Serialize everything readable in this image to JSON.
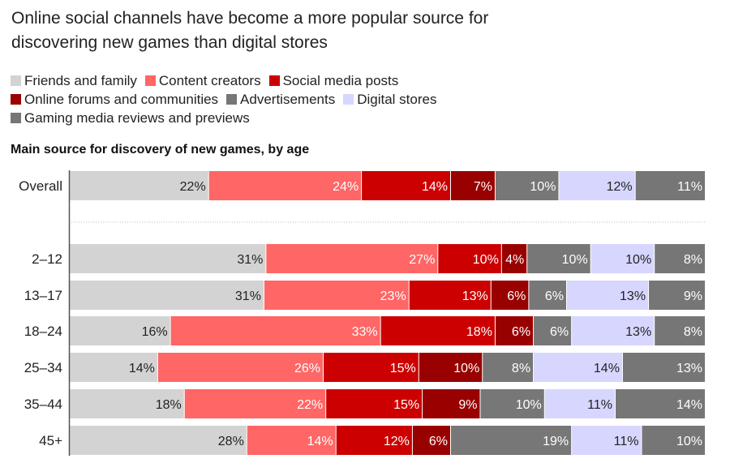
{
  "title": "Online social channels have become a more popular source for discovering new games than digital stores",
  "subtitle": "Main source for discovery of new games, by age",
  "chart_data": {
    "type": "bar",
    "orientation": "horizontal",
    "stacked": true,
    "categories": [
      "Overall",
      "2–12",
      "13–17",
      "18–24",
      "25–34",
      "35–44",
      "45+"
    ],
    "series": [
      {
        "name": "Friends and family",
        "color": "#d3d3d3",
        "values": [
          22,
          31,
          31,
          16,
          14,
          18,
          28
        ]
      },
      {
        "name": "Content creators",
        "color": "#ff6666",
        "values": [
          24,
          27,
          23,
          33,
          26,
          22,
          14
        ]
      },
      {
        "name": "Social media posts",
        "color": "#cc0000",
        "values": [
          14,
          10,
          13,
          18,
          15,
          15,
          12
        ]
      },
      {
        "name": "Online forums and communities",
        "color": "#990000",
        "values": [
          7,
          4,
          6,
          6,
          10,
          9,
          6
        ]
      },
      {
        "name": "Advertisements",
        "color": "#777777",
        "values": [
          10,
          10,
          6,
          6,
          8,
          10,
          19
        ]
      },
      {
        "name": "Digital stores",
        "color": "#d6d6ff",
        "values": [
          12,
          10,
          13,
          13,
          14,
          11,
          11
        ]
      },
      {
        "name": "Gaming media reviews and previews",
        "color": "#767676",
        "values": [
          11,
          8,
          9,
          8,
          13,
          14,
          10
        ]
      }
    ],
    "unit": "%",
    "legend": "top",
    "grid": false
  }
}
